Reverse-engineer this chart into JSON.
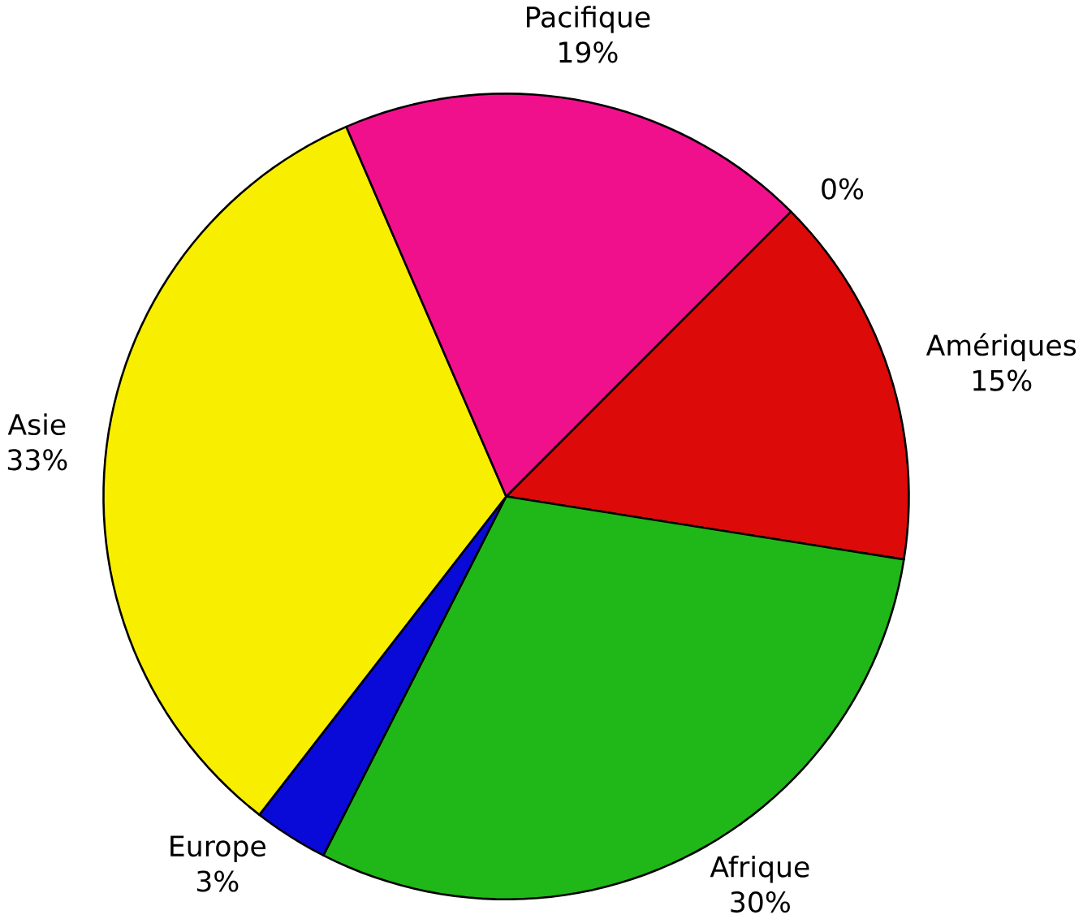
{
  "chart_data": {
    "type": "pie",
    "categories": [
      null,
      "Amériques",
      "Afrique",
      "Europe",
      "Asie",
      "Pacifique"
    ],
    "values": [
      0,
      15,
      30,
      3,
      33,
      19
    ],
    "value_labels": [
      "0%",
      "15%",
      "30%",
      "3%",
      "33%",
      "19%"
    ],
    "colors": [
      "#ff8000",
      "#dd0a0a",
      "#20b818",
      "#0a0ad8",
      "#f8ee00",
      "#f0108c"
    ]
  }
}
